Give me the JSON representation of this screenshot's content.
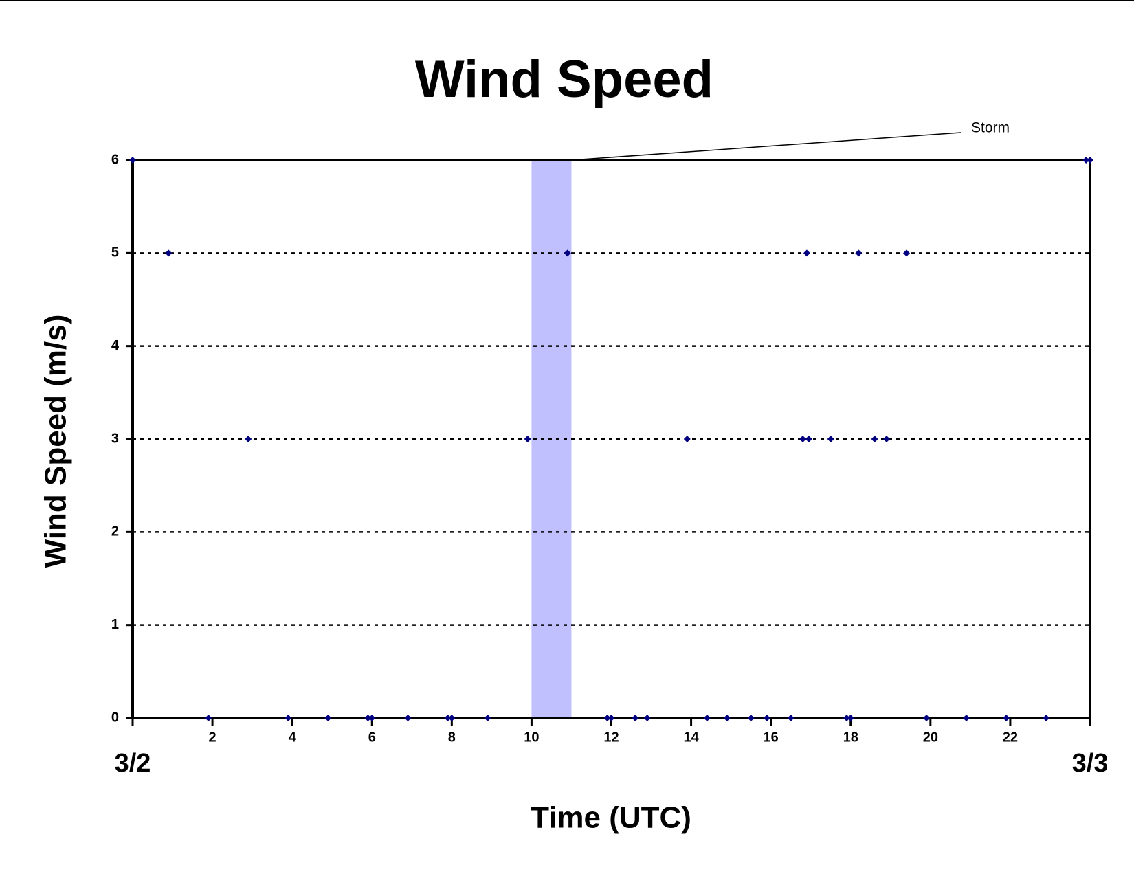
{
  "chart_data": {
    "type": "scatter",
    "title": "Wind Speed",
    "x_label": "Time (UTC)",
    "y_label": "Wind Speed (m/s)",
    "xlim": [
      0,
      24
    ],
    "ylim": [
      0,
      6
    ],
    "xticks": [
      {
        "value": 0,
        "label": "3/2"
      },
      2,
      4,
      6,
      8,
      10,
      12,
      14,
      16,
      18,
      20,
      22,
      {
        "value": 24,
        "label": "3/3"
      }
    ],
    "yticks": [
      0,
      1,
      2,
      3,
      4,
      5,
      6
    ],
    "grid": true,
    "annotation": {
      "text": "Storm",
      "x": [
        10,
        11
      ],
      "color": "#c0c0ff"
    },
    "series": [
      {
        "name": "Wind Speed",
        "color": "#000080",
        "x": [
          0,
          0.9,
          1.9,
          2.9,
          3.9,
          4.9,
          5.9,
          6.0,
          6.9,
          7.9,
          8.0,
          8.9,
          9.9,
          10.9,
          11.9,
          12.0,
          12.6,
          12.9,
          13.9,
          14.4,
          14.9,
          15.5,
          15.9,
          16.5,
          16.8,
          16.9,
          16.95,
          17.5,
          17.9,
          18.0,
          18.2,
          18.6,
          18.9,
          19.4,
          19.9,
          20.9,
          21.9,
          22.9,
          23.9,
          24
        ],
        "values": [
          6,
          5,
          0,
          3,
          0,
          0,
          0,
          0,
          0,
          0,
          0,
          0,
          3,
          5,
          0,
          0,
          0,
          0,
          3,
          0,
          0,
          0,
          0,
          0,
          3,
          5,
          3,
          3,
          0,
          0,
          5,
          3,
          3,
          5,
          0,
          0,
          0,
          0,
          6,
          6
        ]
      }
    ]
  }
}
